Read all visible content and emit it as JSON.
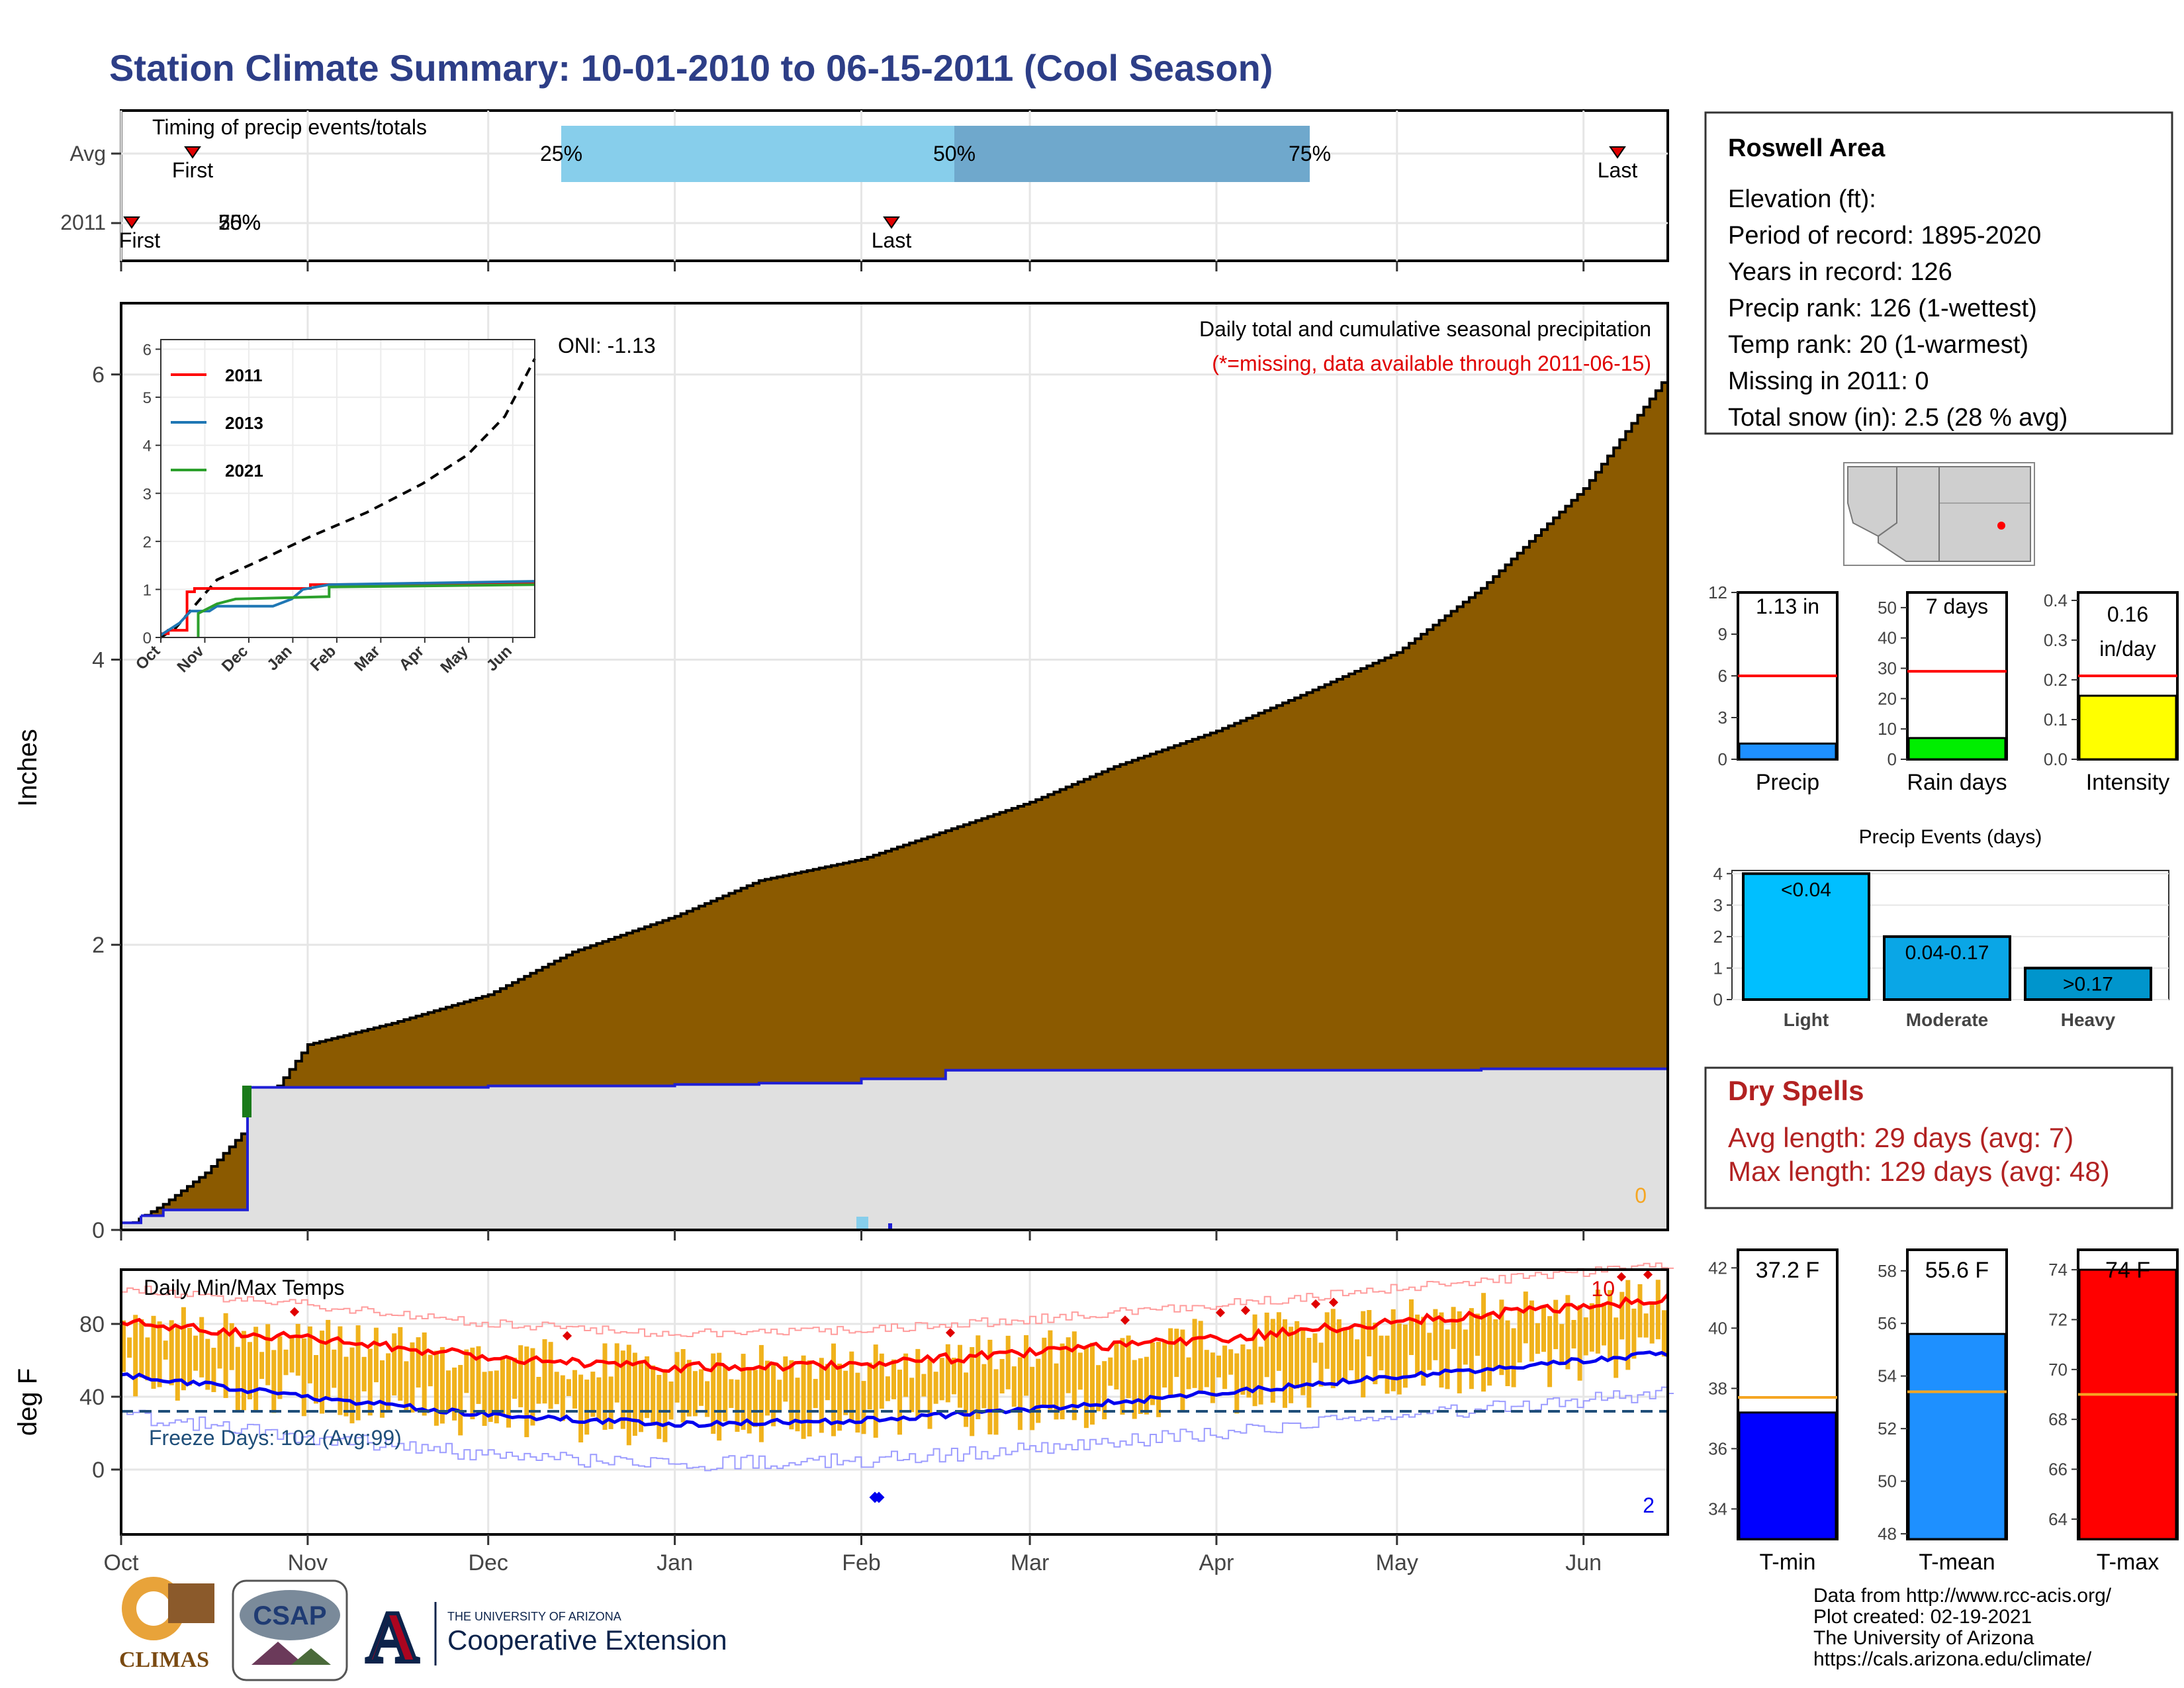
{
  "title": "Station Climate Summary: 10-01-2010 to 06-15-2011 (Cool Season)",
  "colors": {
    "title": "#2d3e87",
    "precip_fill": "#8b5a00",
    "record_year": "#1f1fd6",
    "normal_band_light": "#87ceeb",
    "normal_band_dark": "#6fa8cc",
    "tmax": "#ff0000",
    "tmin": "#0000ee",
    "daily_bars": "#f0b21c",
    "dry_spells": "#b22222"
  },
  "timing": {
    "title": "Timing of precip events/totals",
    "rows": [
      "Avg",
      "2011"
    ],
    "avg_first_label": "First",
    "avg_last_label": "Last",
    "cur_first_label": "First",
    "cur_last_label": "Last",
    "pct_25": "25%",
    "pct_50": "50%",
    "pct_75": "75%",
    "cur_overlap_label": "50%",
    "cur_overlap_label2": "25%",
    "cur_overlap_label3": "75%"
  },
  "precip": {
    "ylabel": "Inches",
    "oni": "ONI: -1.13",
    "heading": "Daily total and cumulative seasonal precipitation",
    "missing_note": "(*=missing, data available through 2011-06-15)",
    "missing_count": "0",
    "yticks": [
      "0",
      "2",
      "4",
      "6"
    ]
  },
  "inset": {
    "legend": [
      {
        "name": "2011",
        "color": "#ff0000"
      },
      {
        "name": "2013",
        "color": "#1f77b4"
      },
      {
        "name": "2021",
        "color": "#2ca02c"
      }
    ],
    "yticks": [
      "0",
      "1",
      "2",
      "3",
      "4",
      "5",
      "6"
    ],
    "xticks": [
      "Oct",
      "Nov",
      "Dec",
      "Jan",
      "Feb",
      "Mar",
      "Apr",
      "May",
      "Jun"
    ]
  },
  "temps": {
    "title": "Daily Min/Max Temps",
    "ylabel": "deg F",
    "freeze": "Freeze Days: 102 (Avg:99)",
    "yticks": [
      "0",
      "40",
      "80"
    ],
    "record_high_count": "10",
    "record_low_count": "2"
  },
  "months": [
    "Oct",
    "Nov",
    "Dec",
    "Jan",
    "Feb",
    "Mar",
    "Apr",
    "May",
    "Jun"
  ],
  "station": {
    "name": "Roswell Area",
    "elevation": "Elevation (ft):",
    "period": "Period of record: 1895-2020",
    "years": "Years in record: 126",
    "precip_rank": "Precip rank: 126 (1-wettest)",
    "temp_rank": "Temp rank: 20 (1-warmest)",
    "missing": "Missing in 2011: 0",
    "snow": "Total snow (in): 2.5 (28 % avg)"
  },
  "minibars": {
    "precip": {
      "label": "Precip",
      "value_text": "1.13 in",
      "yticks": [
        "0",
        "3",
        "6",
        "9",
        "12"
      ]
    },
    "raindays": {
      "label": "Rain days",
      "value_text": "7 days",
      "yticks": [
        "0",
        "10",
        "20",
        "30",
        "40",
        "50"
      ]
    },
    "intensity": {
      "label": "Intensity",
      "value_text": "0.16",
      "value_text2": "in/day",
      "yticks": [
        "0.0",
        "0.1",
        "0.2",
        "0.3",
        "0.4"
      ]
    }
  },
  "events": {
    "title": "Precip Events (days)",
    "categories": [
      "Light",
      "Moderate",
      "Heavy"
    ],
    "bar_labels": [
      "<0.04",
      "0.04-0.17",
      ">0.17"
    ],
    "yticks": [
      "0",
      "1",
      "2",
      "3",
      "4"
    ]
  },
  "dry": {
    "title": "Dry Spells",
    "avg": "Avg length: 29 days (avg: 7)",
    "max": "Max length: 129 days (avg: 48)"
  },
  "tbars": {
    "tmin": {
      "label": "T-min",
      "value_text": "37.2 F",
      "yticks": [
        "34",
        "36",
        "38",
        "40",
        "42"
      ]
    },
    "tmean": {
      "label": "T-mean",
      "value_text": "55.6 F",
      "yticks": [
        "48",
        "50",
        "52",
        "54",
        "56",
        "58"
      ]
    },
    "tmax": {
      "label": "T-max",
      "value_text": "74 F",
      "yticks": [
        "64",
        "66",
        "68",
        "70",
        "72",
        "74"
      ]
    }
  },
  "footer": {
    "line1": "Data from http://www.rcc-acis.org/",
    "line2": "Plot created: 02-19-2021",
    "line3": "The University of Arizona",
    "line4": "https://cals.arizona.edu/climate/"
  },
  "logos": {
    "climas": "CLIMAS",
    "csap": "CSAP",
    "ua_small": "THE UNIVERSITY OF ARIZONA",
    "ua_big": "Cooperative Extension",
    "ua_letter": "A"
  },
  "chart_data": [
    {
      "type": "area",
      "title": "Daily total and cumulative seasonal precipitation",
      "ylabel": "Inches",
      "ylim": [
        0,
        6.5
      ],
      "x": [
        "2010-10-01",
        "2010-10-08",
        "2010-10-15",
        "2010-10-22",
        "2010-11-01",
        "2010-11-15",
        "2010-12-01",
        "2010-12-15",
        "2011-01-01",
        "2011-01-15",
        "2011-02-01",
        "2011-02-15",
        "2011-03-01",
        "2011-03-15",
        "2011-04-01",
        "2011-04-15",
        "2011-05-01",
        "2011-05-15",
        "2011-06-01",
        "2011-06-15"
      ],
      "series": [
        {
          "name": "Avg",
          "values": [
            0.0,
            0.18,
            0.4,
            0.72,
            1.3,
            1.45,
            1.65,
            1.95,
            2.2,
            2.45,
            2.6,
            2.8,
            3.0,
            3.25,
            3.5,
            3.75,
            4.05,
            4.5,
            5.2,
            6.0
          ]
        },
        {
          "name": "2011",
          "values": [
            0.1,
            0.14,
            0.14,
            1.0,
            1.0,
            1.0,
            1.01,
            1.01,
            1.02,
            1.03,
            1.06,
            1.12,
            1.12,
            1.12,
            1.12,
            1.12,
            1.12,
            1.13,
            1.13,
            1.13
          ]
        }
      ]
    },
    {
      "type": "line",
      "title": "Daily Min/Max Temps",
      "ylabel": "deg F",
      "x": [
        "Oct",
        "Nov",
        "Dec",
        "Jan",
        "Feb",
        "Mar",
        "Apr",
        "May",
        "Jun"
      ],
      "series": [
        {
          "name": "Avg max",
          "values": [
            81,
            72,
            62,
            56,
            58,
            64,
            72,
            81,
            90
          ]
        },
        {
          "name": "Avg min",
          "values": [
            52,
            40,
            30,
            25,
            27,
            33,
            42,
            51,
            60
          ]
        },
        {
          "name": "Freeze threshold",
          "values": [
            32,
            32,
            32,
            32,
            32,
            32,
            32,
            32,
            32
          ]
        }
      ]
    },
    {
      "type": "bar",
      "title": "Precip Events (days)",
      "categories": [
        "Light",
        "Moderate",
        "Heavy"
      ],
      "values": [
        4,
        2,
        1
      ],
      "ylim": [
        0,
        4
      ]
    },
    {
      "type": "bar",
      "categories": [
        "Precip",
        "Rain days",
        "Intensity"
      ],
      "values": [
        1.13,
        7,
        0.16
      ],
      "averages": [
        6,
        29,
        0.21
      ]
    },
    {
      "type": "bar",
      "categories": [
        "T-min",
        "T-mean",
        "T-max"
      ],
      "values": [
        37.2,
        55.6,
        74
      ],
      "averages": [
        37.7,
        53.4,
        69
      ]
    }
  ]
}
